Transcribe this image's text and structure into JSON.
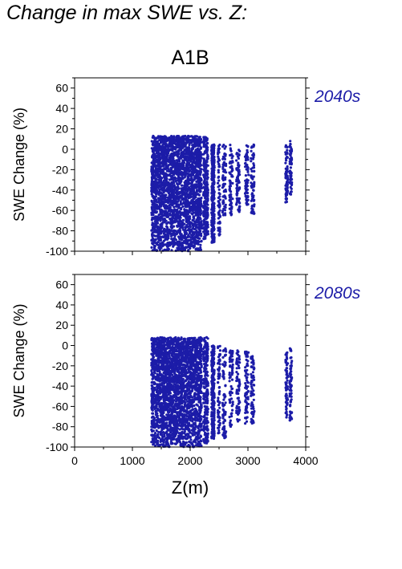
{
  "page_title": "Change in max SWE vs. Z:",
  "accent_color": "#1c1ca8",
  "chart_data": [
    {
      "type": "scatter",
      "title": "A1B",
      "period_label": "2040s",
      "xlabel": "",
      "ylabel": "SWE Change (%)",
      "xlim": [
        0,
        4000
      ],
      "ylim": [
        -100,
        70
      ],
      "xticks": [
        0,
        1000,
        2000,
        3000,
        4000
      ],
      "yticks": [
        -100,
        -80,
        -60,
        -40,
        -20,
        0,
        20,
        40,
        60
      ],
      "show_x_tick_labels": false,
      "grid": false,
      "point_color": "#1c1ca8",
      "clusters": [
        {
          "z_range": [
            1330,
            2200
          ],
          "swe_range": [
            -100,
            13
          ],
          "density": "dense"
        },
        {
          "z_range": [
            2230,
            2310
          ],
          "swe_range": [
            -88,
            12
          ],
          "density": "medium"
        },
        {
          "z_range": [
            2370,
            2420
          ],
          "swe_range": [
            -92,
            5
          ],
          "density": "medium"
        },
        {
          "z_range": [
            2480,
            2520
          ],
          "swe_range": [
            -85,
            5
          ],
          "density": "sparse"
        },
        {
          "z_range": [
            2560,
            2620
          ],
          "swe_range": [
            -70,
            5
          ],
          "density": "sparse"
        },
        {
          "z_range": [
            2680,
            2740
          ],
          "swe_range": [
            -65,
            5
          ],
          "density": "sparse"
        },
        {
          "z_range": [
            2800,
            2860
          ],
          "swe_range": [
            -62,
            0
          ],
          "density": "sparse"
        },
        {
          "z_range": [
            2950,
            3010
          ],
          "swe_range": [
            -55,
            5
          ],
          "density": "sparse"
        },
        {
          "z_range": [
            3050,
            3110
          ],
          "swe_range": [
            -65,
            5
          ],
          "density": "sparse"
        },
        {
          "z_range": [
            3650,
            3690
          ],
          "swe_range": [
            -53,
            5
          ],
          "density": "sparse"
        },
        {
          "z_range": [
            3720,
            3760
          ],
          "swe_range": [
            -45,
            8
          ],
          "density": "sparse"
        }
      ]
    },
    {
      "type": "scatter",
      "title": "",
      "period_label": "2080s",
      "xlabel": "Z(m)",
      "ylabel": "SWE Change (%)",
      "xlim": [
        0,
        4000
      ],
      "ylim": [
        -100,
        70
      ],
      "xticks": [
        0,
        1000,
        2000,
        3000,
        4000
      ],
      "yticks": [
        -100,
        -80,
        -60,
        -40,
        -20,
        0,
        20,
        40,
        60
      ],
      "show_x_tick_labels": true,
      "grid": false,
      "point_color": "#1c1ca8",
      "clusters": [
        {
          "z_range": [
            1330,
            2200
          ],
          "swe_range": [
            -100,
            8
          ],
          "density": "dense"
        },
        {
          "z_range": [
            2230,
            2310
          ],
          "swe_range": [
            -97,
            8
          ],
          "density": "medium"
        },
        {
          "z_range": [
            2370,
            2420
          ],
          "swe_range": [
            -92,
            0
          ],
          "density": "medium"
        },
        {
          "z_range": [
            2480,
            2520
          ],
          "swe_range": [
            -88,
            0
          ],
          "density": "sparse"
        },
        {
          "z_range": [
            2560,
            2620
          ],
          "swe_range": [
            -95,
            0
          ],
          "density": "sparse"
        },
        {
          "z_range": [
            2680,
            2740
          ],
          "swe_range": [
            -80,
            -5
          ],
          "density": "sparse"
        },
        {
          "z_range": [
            2800,
            2860
          ],
          "swe_range": [
            -75,
            -5
          ],
          "density": "sparse"
        },
        {
          "z_range": [
            2950,
            3010
          ],
          "swe_range": [
            -78,
            -5
          ],
          "density": "sparse"
        },
        {
          "z_range": [
            3050,
            3110
          ],
          "swe_range": [
            -77,
            -10
          ],
          "density": "sparse"
        },
        {
          "z_range": [
            3650,
            3690
          ],
          "swe_range": [
            -72,
            -5
          ],
          "density": "sparse"
        },
        {
          "z_range": [
            3720,
            3760
          ],
          "swe_range": [
            -75,
            0
          ],
          "density": "sparse"
        }
      ]
    }
  ]
}
